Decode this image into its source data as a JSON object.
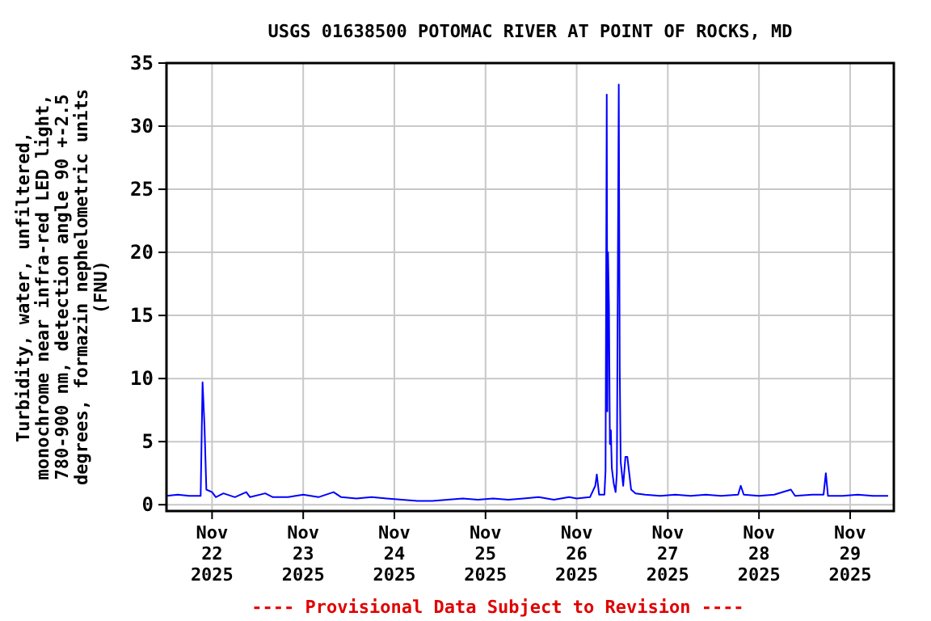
{
  "chart_data": {
    "type": "line",
    "title": "USGS 01638500 POTOMAC RIVER AT POINT OF ROCKS, MD",
    "ylabel": "Turbidity, water, unfiltered, monochrome near infra-red LED light, 780-900 nm, detection angle 90 +-2.5 degrees, formazin nephelometric units (FNU)",
    "annotations": [
      "---- Provisional Data Subject to Revision ----"
    ],
    "xlim": [
      "2025-11-21T12:00",
      "2025-11-29T11:30"
    ],
    "xticks": [
      {
        "value": "2025-11-22",
        "label": "Nov 22 2025"
      },
      {
        "value": "2025-11-23",
        "label": "Nov 23 2025"
      },
      {
        "value": "2025-11-24",
        "label": "Nov 24 2025"
      },
      {
        "value": "2025-11-25",
        "label": "Nov 25 2025"
      },
      {
        "value": "2025-11-26",
        "label": "Nov 26 2025"
      },
      {
        "value": "2025-11-27",
        "label": "Nov 27 2025"
      },
      {
        "value": "2025-11-28",
        "label": "Nov 28 2025"
      },
      {
        "value": "2025-11-29",
        "label": "Nov 29 2025"
      }
    ],
    "ylim": [
      -0.5,
      35
    ],
    "yticks": [
      0,
      5,
      10,
      15,
      20,
      25,
      30,
      35
    ],
    "grid": true,
    "marker": "none",
    "line_style": "solid",
    "series": [
      {
        "color": "#0000ff",
        "x": [
          "2025-11-21T12:00",
          "2025-11-21T15:00",
          "2025-11-21T18:00",
          "2025-11-21T21:00",
          "2025-11-21T21:30",
          "2025-11-21T22:00",
          "2025-11-21T22:30",
          "2025-11-22T00:00",
          "2025-11-22T01:00",
          "2025-11-22T03:00",
          "2025-11-22T06:00",
          "2025-11-22T09:00",
          "2025-11-22T10:00",
          "2025-11-22T14:00",
          "2025-11-22T16:00",
          "2025-11-22T20:00",
          "2025-11-23T00:00",
          "2025-11-23T04:00",
          "2025-11-23T08:00",
          "2025-11-23T10:00",
          "2025-11-23T14:00",
          "2025-11-23T18:00",
          "2025-11-23T22:00",
          "2025-11-24T02:00",
          "2025-11-24T06:00",
          "2025-11-24T10:00",
          "2025-11-24T14:00",
          "2025-11-24T18:00",
          "2025-11-24T22:00",
          "2025-11-25T02:00",
          "2025-11-25T06:00",
          "2025-11-25T10:00",
          "2025-11-25T14:00",
          "2025-11-25T18:00",
          "2025-11-25T22:00",
          "2025-11-26T00:00",
          "2025-11-26T03:30",
          "2025-11-26T04:54",
          "2025-11-26T05:18",
          "2025-11-26T05:54",
          "2025-11-26T07:18",
          "2025-11-26T07:36",
          "2025-11-26T07:55",
          "2025-11-26T08:05",
          "2025-11-26T08:15",
          "2025-11-26T08:30",
          "2025-11-26T08:45",
          "2025-11-26T09:00",
          "2025-11-26T09:15",
          "2025-11-26T09:45",
          "2025-11-26T10:15",
          "2025-11-26T10:35",
          "2025-11-26T10:50",
          "2025-11-26T11:05",
          "2025-11-26T11:20",
          "2025-11-26T11:35",
          "2025-11-26T12:15",
          "2025-11-26T12:50",
          "2025-11-26T13:20",
          "2025-11-26T13:50",
          "2025-11-26T14:20",
          "2025-11-26T15:30",
          "2025-11-26T18:00",
          "2025-11-26T22:00",
          "2025-11-27T02:00",
          "2025-11-27T06:00",
          "2025-11-27T10:00",
          "2025-11-27T14:00",
          "2025-11-27T18:30",
          "2025-11-27T19:12",
          "2025-11-27T20:00",
          "2025-11-28T00:00",
          "2025-11-28T04:00",
          "2025-11-28T08:24",
          "2025-11-28T09:30",
          "2025-11-28T14:00",
          "2025-11-28T17:00",
          "2025-11-28T17:36",
          "2025-11-28T18:10",
          "2025-11-28T22:00",
          "2025-11-29T02:00",
          "2025-11-29T06:00",
          "2025-11-29T10:00"
        ],
        "values": [
          0.7,
          0.8,
          0.7,
          0.7,
          9.7,
          6.3,
          1.2,
          1.0,
          0.6,
          0.9,
          0.6,
          1.0,
          0.6,
          0.9,
          0.6,
          0.6,
          0.8,
          0.6,
          1.0,
          0.6,
          0.5,
          0.6,
          0.5,
          0.4,
          0.3,
          0.3,
          0.4,
          0.5,
          0.4,
          0.5,
          0.4,
          0.5,
          0.6,
          0.4,
          0.6,
          0.5,
          0.6,
          1.5,
          2.4,
          0.8,
          0.8,
          2.7,
          32.5,
          7.4,
          20,
          15.7,
          4.8,
          5.9,
          2.9,
          1.7,
          1.0,
          2.5,
          18.3,
          33.3,
          10.8,
          3.4,
          1.5,
          3.8,
          3.8,
          2.5,
          1.2,
          0.9,
          0.8,
          0.7,
          0.8,
          0.7,
          0.8,
          0.7,
          0.8,
          1.5,
          0.8,
          0.7,
          0.8,
          1.2,
          0.7,
          0.8,
          0.8,
          2.5,
          0.7,
          0.7,
          0.8,
          0.7,
          0.7
        ]
      }
    ]
  }
}
